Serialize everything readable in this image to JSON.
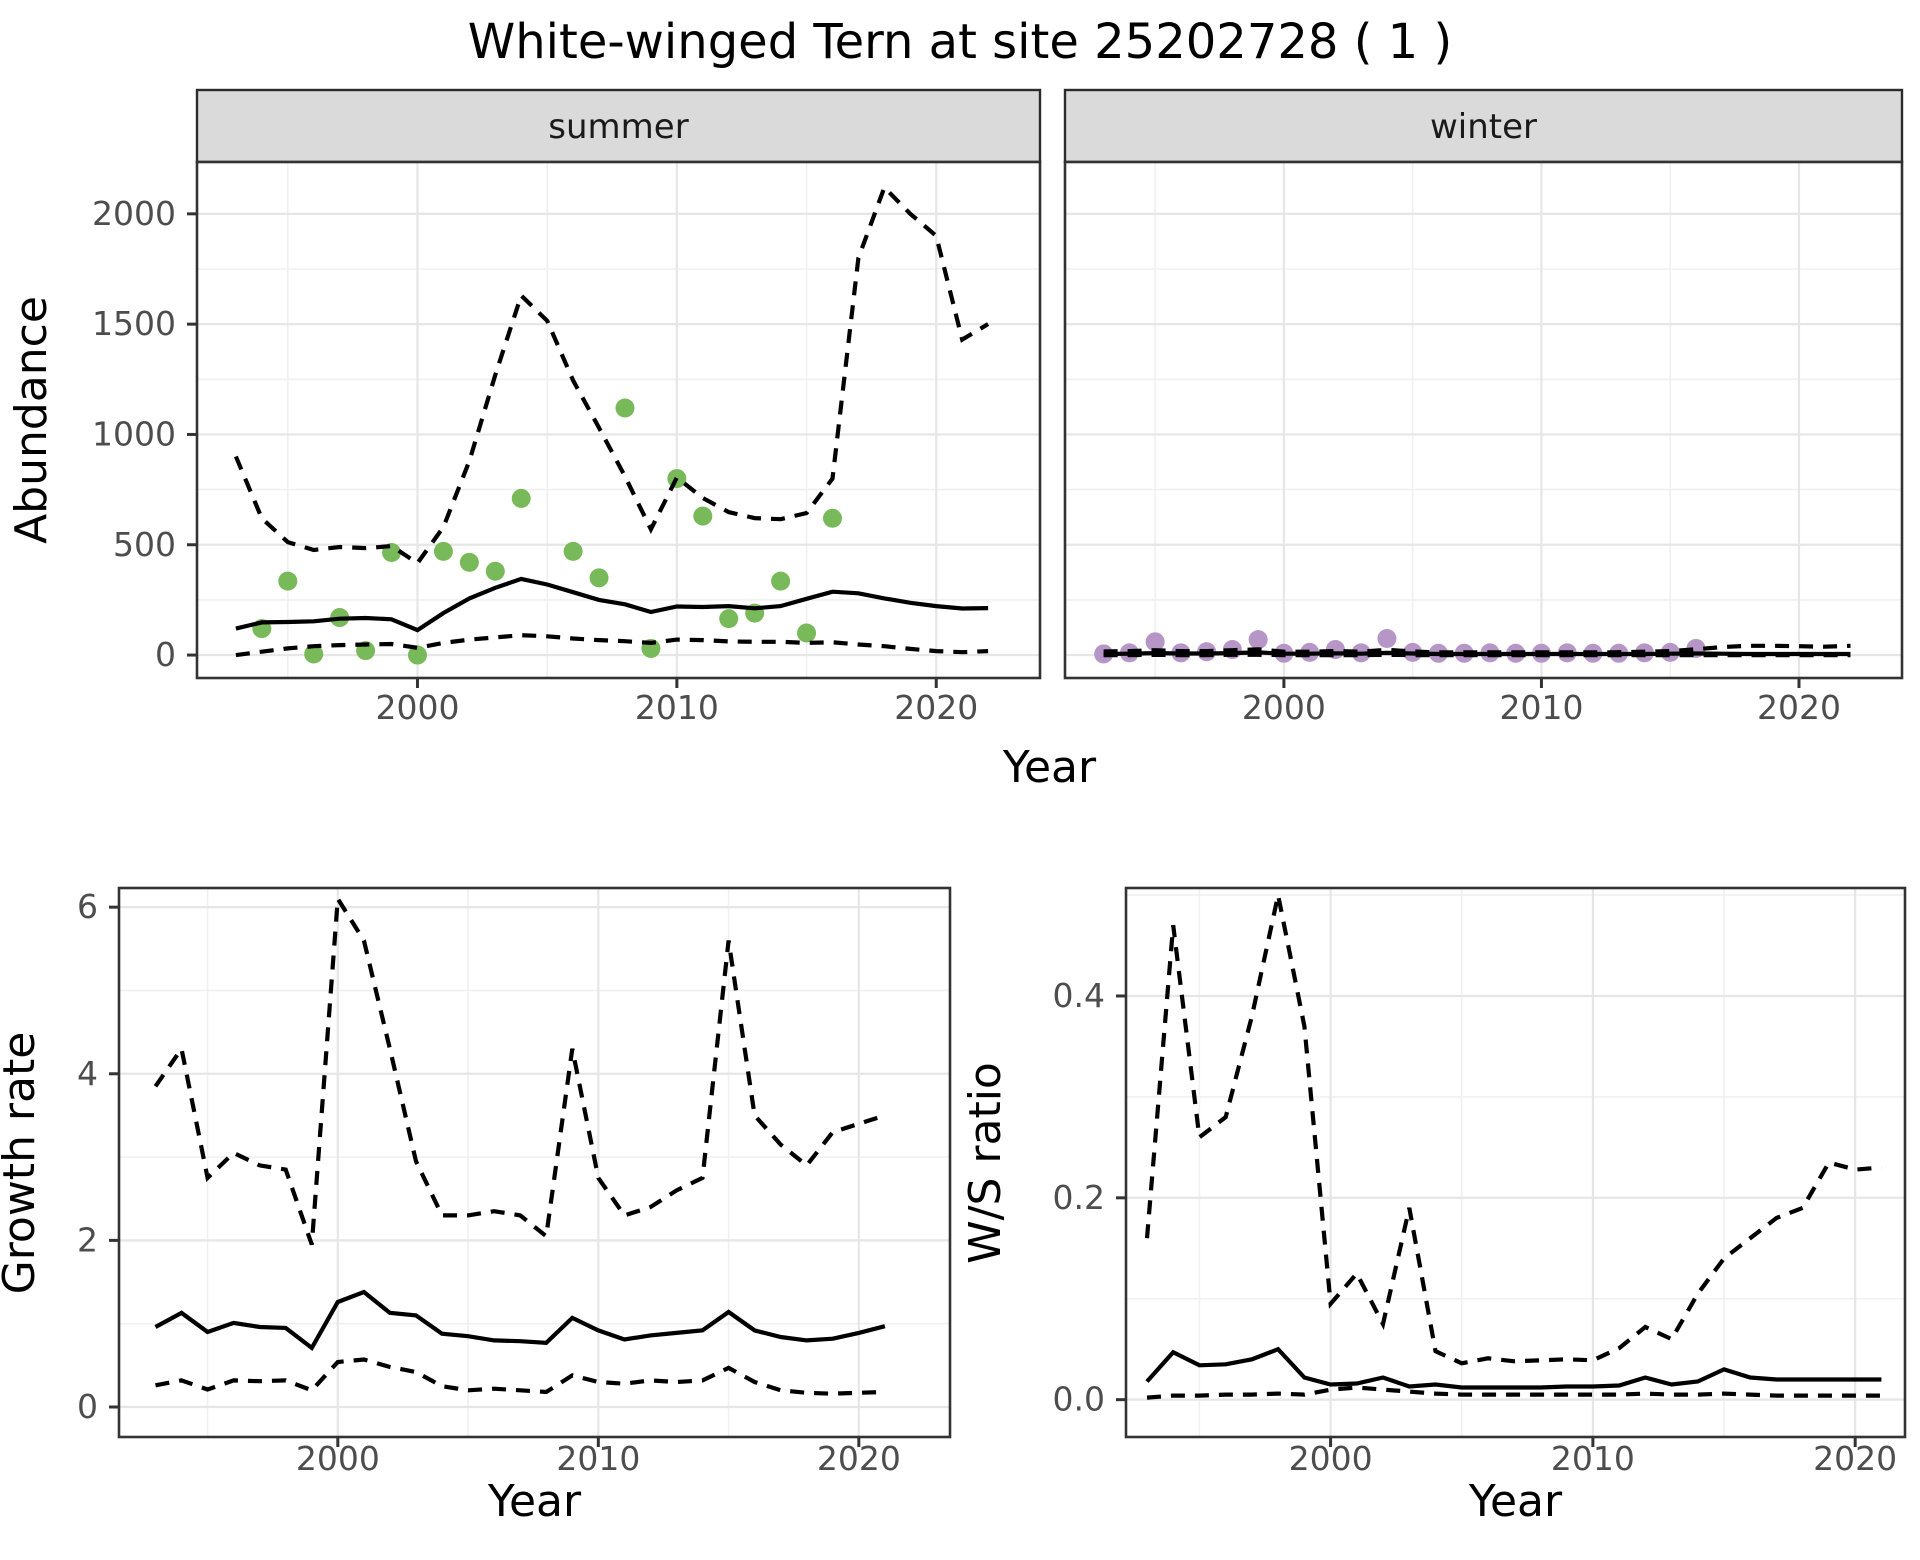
{
  "title": "White-winged Tern at site 25202728 ( 1 )",
  "labels": {
    "x_axis": "Year",
    "abundance_axis": "Abundance",
    "growth_axis": "Growth rate",
    "ws_axis": "W/S ratio",
    "facet_summer": "summer",
    "facet_winter": "winter"
  },
  "colors": {
    "summer_dot": "#78B95A",
    "winter_dot": "#B695C7",
    "line": "#000000",
    "grid_major": "#E6E6E6",
    "grid_minor": "#F0F0F0",
    "panel_border": "#333333",
    "strip_bg": "#DADADA",
    "strip_border": "#2B2B2B",
    "axis_text": "#4D4D4D",
    "tick_mark": "#333333"
  },
  "chart_data": [
    {
      "id": "abundance",
      "type": "line",
      "title": "Abundance by year, faceted by season",
      "xlabel": "Year",
      "ylabel": "Abundance",
      "xlim": [
        1991.5,
        2024
      ],
      "ylim": [
        -104,
        2235
      ],
      "xticks": {
        "values": [
          2000,
          2010,
          2020
        ],
        "labels": [
          "2000",
          "2010",
          "2020"
        ]
      },
      "xminor": [
        1995,
        2005,
        2015
      ],
      "yticks": {
        "values": [
          0,
          500,
          1000,
          1500,
          2000
        ],
        "labels": [
          "0",
          "500",
          "1000",
          "1500",
          "2000"
        ]
      },
      "yminor": [
        250,
        750,
        1250,
        1750
      ],
      "facets": [
        {
          "name": "summer",
          "dot_color_key": "summer_dot",
          "observations": {
            "years": [
              1994,
              1995,
              1996,
              1997,
              1998,
              1999,
              2000,
              2001,
              2002,
              2003,
              2004,
              2006,
              2007,
              2008,
              2009,
              2010,
              2011,
              2012,
              2013,
              2014,
              2015,
              2016
            ],
            "values": [
              120,
              335,
              5,
              170,
              20,
              465,
              0,
              470,
              420,
              380,
              710,
              470,
              350,
              1120,
              30,
              800,
              630,
              165,
              190,
              335,
              100,
              620
            ]
          },
          "years": [
            1993,
            1994,
            1995,
            1996,
            1997,
            1998,
            1999,
            2000,
            2001,
            2002,
            2003,
            2004,
            2005,
            2006,
            2007,
            2008,
            2009,
            2010,
            2011,
            2012,
            2013,
            2014,
            2015,
            2016,
            2017,
            2018,
            2019,
            2020,
            2021,
            2022
          ],
          "median": [
            120,
            148,
            150,
            153,
            165,
            168,
            162,
            113,
            190,
            257,
            305,
            345,
            320,
            285,
            250,
            230,
            195,
            220,
            218,
            222,
            212,
            222,
            255,
            287,
            280,
            257,
            237,
            222,
            211,
            213
          ],
          "upper": [
            900,
            620,
            512,
            476,
            490,
            485,
            494,
            417,
            580,
            880,
            1270,
            1630,
            1515,
            1245,
            1030,
            810,
            570,
            805,
            712,
            648,
            621,
            616,
            644,
            800,
            1800,
            2120,
            2000,
            1900,
            1430,
            1500
          ],
          "lower": [
            0,
            15,
            30,
            40,
            45,
            48,
            50,
            33,
            55,
            70,
            80,
            90,
            85,
            75,
            68,
            63,
            55,
            70,
            68,
            62,
            60,
            60,
            55,
            58,
            48,
            40,
            28,
            18,
            13,
            18
          ]
        },
        {
          "name": "winter",
          "dot_color_key": "winter_dot",
          "observations": {
            "years": [
              1993,
              1994,
              1995,
              1996,
              1997,
              1998,
              1999,
              2000,
              2001,
              2002,
              2003,
              2004,
              2005,
              2006,
              2007,
              2008,
              2009,
              2010,
              2011,
              2012,
              2013,
              2014,
              2015,
              2016
            ],
            "values": [
              5,
              10,
              60,
              10,
              15,
              25,
              70,
              8,
              12,
              25,
              10,
              75,
              12,
              8,
              8,
              10,
              8,
              8,
              10,
              8,
              8,
              10,
              12,
              30
            ]
          },
          "years": [
            1993,
            1994,
            1995,
            1996,
            1997,
            1998,
            1999,
            2000,
            2001,
            2002,
            2003,
            2004,
            2005,
            2006,
            2007,
            2008,
            2009,
            2010,
            2011,
            2012,
            2013,
            2014,
            2015,
            2016,
            2017,
            2018,
            2019,
            2020,
            2021,
            2022
          ],
          "median": [
            5,
            6,
            9,
            7,
            7,
            9,
            12,
            6,
            6,
            8,
            6,
            10,
            7,
            5,
            5,
            5,
            5,
            5,
            5,
            5,
            5,
            5,
            6,
            7,
            6,
            5,
            5,
            5,
            5,
            5
          ],
          "upper": [
            16,
            18,
            22,
            18,
            18,
            22,
            26,
            15,
            15,
            18,
            15,
            24,
            16,
            12,
            12,
            12,
            12,
            12,
            12,
            12,
            13,
            15,
            18,
            26,
            36,
            42,
            42,
            40,
            38,
            42
          ],
          "lower": [
            0,
            0,
            1,
            0,
            0,
            1,
            1,
            0,
            0,
            0,
            0,
            1,
            0,
            0,
            0,
            0,
            0,
            0,
            0,
            0,
            0,
            0,
            0,
            0,
            0,
            0,
            0,
            0,
            0,
            0
          ]
        }
      ]
    },
    {
      "id": "growth_rate",
      "type": "line",
      "title": "Growth rate by year",
      "xlabel": "Year",
      "ylabel": "Growth rate",
      "xlim": [
        1991.6,
        2023.5
      ],
      "ylim": [
        -0.36,
        6.23
      ],
      "xticks": {
        "values": [
          2000,
          2010,
          2020
        ],
        "labels": [
          "2000",
          "2010",
          "2020"
        ]
      },
      "xminor": [
        1995,
        2005,
        2015
      ],
      "yticks": {
        "values": [
          0,
          2,
          4,
          6
        ],
        "labels": [
          "0",
          "2",
          "4",
          "6"
        ]
      },
      "yminor": [
        1,
        3,
        5
      ],
      "years": [
        1993,
        1994,
        1995,
        1996,
        1997,
        1998,
        1999,
        2000,
        2001,
        2002,
        2003,
        2004,
        2005,
        2006,
        2007,
        2008,
        2009,
        2010,
        2011,
        2012,
        2013,
        2014,
        2015,
        2016,
        2017,
        2018,
        2019,
        2020,
        2021
      ],
      "median": [
        0.96,
        1.13,
        0.9,
        1.01,
        0.96,
        0.95,
        0.71,
        1.26,
        1.38,
        1.13,
        1.1,
        0.88,
        0.85,
        0.8,
        0.79,
        0.77,
        1.07,
        0.92,
        0.81,
        0.86,
        0.89,
        0.92,
        1.14,
        0.92,
        0.84,
        0.8,
        0.82,
        0.89,
        0.97
      ],
      "upper": [
        3.85,
        4.3,
        2.75,
        3.05,
        2.9,
        2.85,
        1.95,
        6.1,
        5.6,
        4.3,
        2.95,
        2.3,
        2.3,
        2.35,
        2.3,
        2.05,
        4.3,
        2.75,
        2.3,
        2.4,
        2.6,
        2.75,
        5.6,
        3.5,
        3.15,
        2.9,
        3.3,
        3.4,
        3.5
      ],
      "lower": [
        0.26,
        0.32,
        0.21,
        0.32,
        0.31,
        0.32,
        0.2,
        0.54,
        0.57,
        0.48,
        0.42,
        0.25,
        0.2,
        0.22,
        0.2,
        0.18,
        0.38,
        0.3,
        0.28,
        0.32,
        0.3,
        0.32,
        0.47,
        0.3,
        0.2,
        0.17,
        0.16,
        0.17,
        0.18
      ]
    },
    {
      "id": "ws_ratio",
      "type": "line",
      "title": "Winter/Summer ratio by year",
      "xlabel": "Year",
      "ylabel": "W/S ratio",
      "xlim": [
        1992.2,
        2021.9
      ],
      "ylim": [
        -0.037,
        0.507
      ],
      "xticks": {
        "values": [
          2000,
          2010,
          2020
        ],
        "labels": [
          "2000",
          "2010",
          "2020"
        ]
      },
      "xminor": [
        1995,
        2005,
        2015
      ],
      "yticks": {
        "values": [
          0.0,
          0.2,
          0.4
        ],
        "labels": [
          "0.0",
          "0.2",
          "0.4"
        ]
      },
      "yminor": [
        0.1,
        0.3,
        0.5
      ],
      "years": [
        1993,
        1994,
        1995,
        1996,
        1997,
        1998,
        1999,
        2000,
        2001,
        2002,
        2003,
        2004,
        2005,
        2006,
        2007,
        2008,
        2009,
        2010,
        2011,
        2012,
        2013,
        2014,
        2015,
        2016,
        2017,
        2018,
        2019,
        2020,
        2021
      ],
      "median": [
        0.018,
        0.047,
        0.034,
        0.035,
        0.04,
        0.05,
        0.022,
        0.015,
        0.016,
        0.022,
        0.013,
        0.015,
        0.012,
        0.012,
        0.012,
        0.012,
        0.013,
        0.013,
        0.014,
        0.022,
        0.015,
        0.018,
        0.03,
        0.022,
        0.02,
        0.02,
        0.02,
        0.02,
        0.02
      ],
      "upper": [
        0.16,
        0.47,
        0.26,
        0.28,
        0.38,
        0.5,
        0.37,
        0.095,
        0.125,
        0.075,
        0.19,
        0.048,
        0.036,
        0.041,
        0.038,
        0.039,
        0.04,
        0.039,
        0.051,
        0.072,
        0.06,
        0.105,
        0.14,
        0.16,
        0.18,
        0.19,
        0.235,
        0.228,
        0.23
      ],
      "lower": [
        0.002,
        0.004,
        0.004,
        0.005,
        0.005,
        0.006,
        0.005,
        0.01,
        0.012,
        0.01,
        0.008,
        0.006,
        0.005,
        0.005,
        0.005,
        0.005,
        0.005,
        0.005,
        0.005,
        0.006,
        0.005,
        0.005,
        0.006,
        0.005,
        0.004,
        0.004,
        0.004,
        0.004,
        0.004
      ]
    }
  ]
}
